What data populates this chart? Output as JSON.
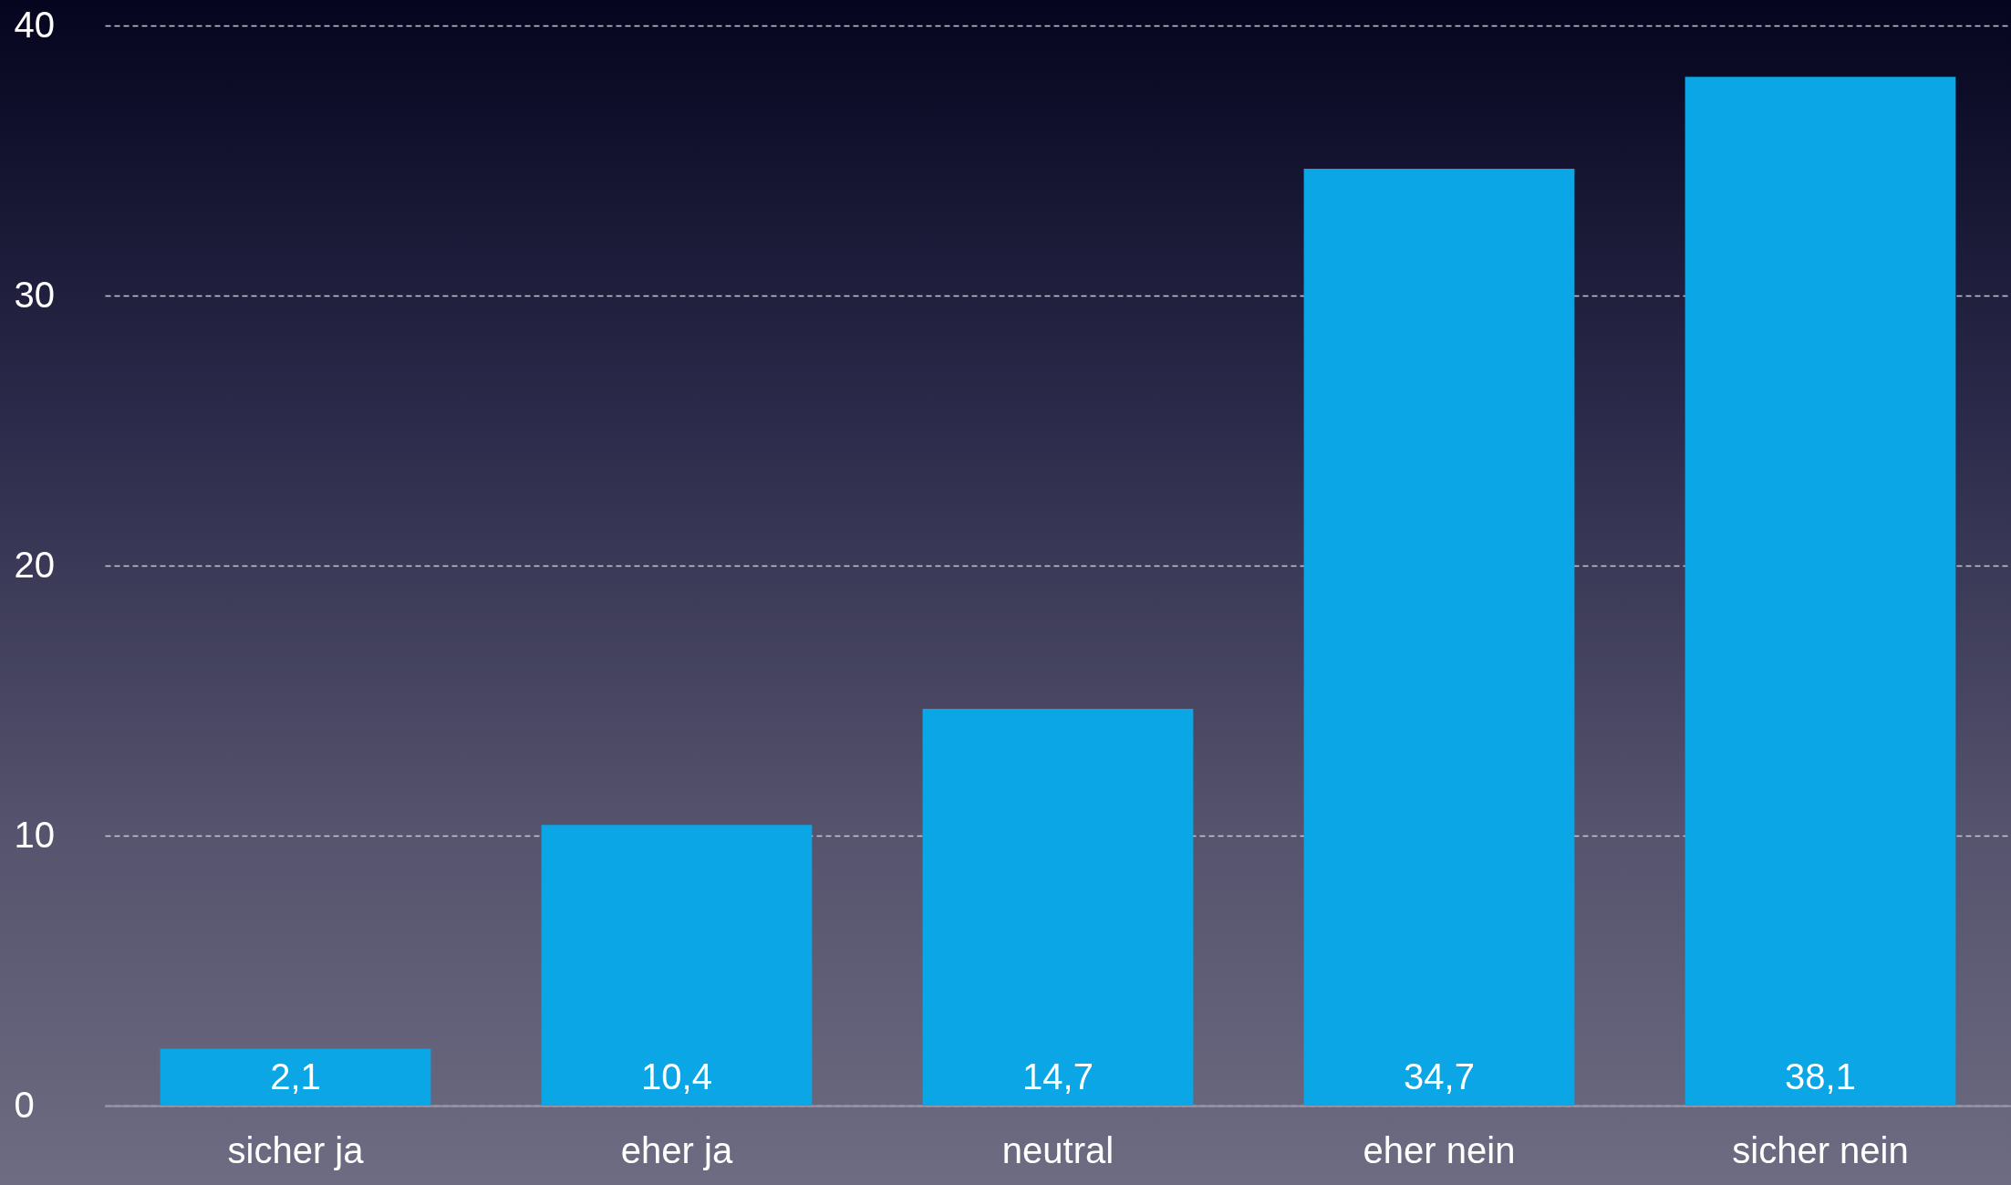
{
  "chart_data": {
    "type": "bar",
    "categories": [
      "sicher ja",
      "eher ja",
      "neutral",
      "eher nein",
      "sicher nein"
    ],
    "values": [
      2.1,
      10.4,
      14.7,
      34.7,
      38.1
    ],
    "value_labels": [
      "2,1",
      "10,4",
      "14,7",
      "34,7",
      "38,1"
    ],
    "color": "#0aa6e6",
    "ylim": [
      0,
      40
    ],
    "yticks": [
      0,
      10,
      20,
      30,
      40
    ],
    "grid": "y"
  }
}
